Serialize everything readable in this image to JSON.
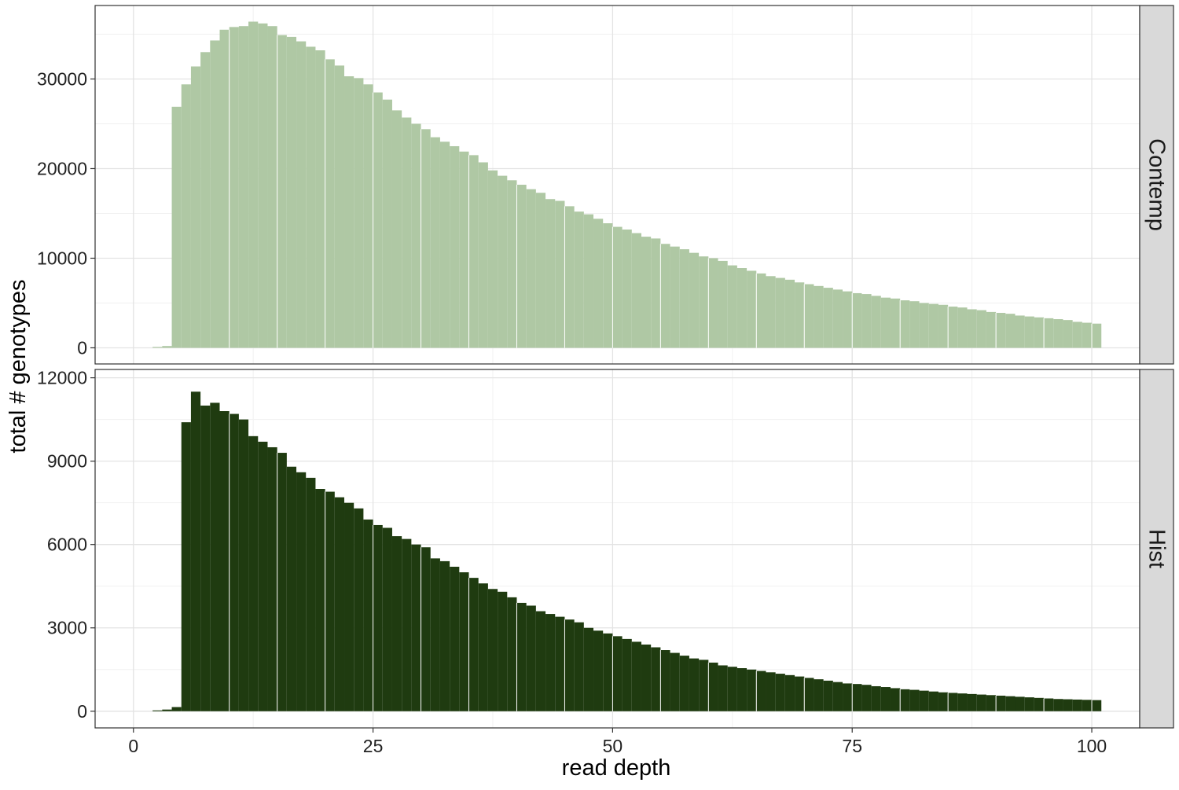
{
  "chart_data": {
    "type": "bar",
    "subtype": "faceted-histogram",
    "xlabel": "read depth",
    "ylabel": "total # genotypes",
    "x_ticks": [
      0,
      25,
      50,
      75,
      100
    ],
    "xlim": [
      -4,
      105
    ],
    "bin_width": 1,
    "bin_start": 1,
    "grid": true,
    "legend": "none",
    "panels": [
      {
        "name": "Contemp",
        "color": "#afc8a4",
        "ylim": [
          -1800,
          38200
        ],
        "y_ticks": [
          0,
          10000,
          20000,
          30000
        ],
        "values": [
          0,
          100,
          200,
          26900,
          29400,
          31400,
          33000,
          34300,
          35500,
          35800,
          35900,
          36400,
          36200,
          35900,
          34900,
          34700,
          34200,
          33600,
          33200,
          32200,
          31500,
          30300,
          30100,
          29400,
          28500,
          27700,
          26500,
          25700,
          25000,
          24400,
          23500,
          23000,
          22500,
          21900,
          21500,
          20700,
          19800,
          19200,
          18700,
          18200,
          17700,
          17300,
          16600,
          16400,
          15800,
          15200,
          14900,
          14400,
          13900,
          13500,
          13200,
          12800,
          12400,
          12200,
          11600,
          11300,
          11000,
          10600,
          10200,
          10000,
          9700,
          9200,
          8900,
          8600,
          8300,
          8000,
          7800,
          7600,
          7300,
          7100,
          6900,
          6700,
          6500,
          6300,
          6100,
          6000,
          5800,
          5600,
          5500,
          5300,
          5200,
          5000,
          4900,
          4800,
          4600,
          4500,
          4300,
          4200,
          4000,
          3900,
          3800,
          3600,
          3500,
          3400,
          3300,
          3200,
          3100,
          2900,
          2800,
          2700
        ]
      },
      {
        "name": "Hist",
        "color": "#1f3b10",
        "ylim": [
          -600,
          12300
        ],
        "y_ticks": [
          0,
          3000,
          6000,
          9000,
          12000
        ],
        "values": [
          0,
          30,
          60,
          150,
          10400,
          11500,
          11000,
          11100,
          10800,
          10700,
          10500,
          9900,
          9700,
          9500,
          9300,
          8800,
          8600,
          8400,
          8000,
          7900,
          7700,
          7500,
          7300,
          6900,
          6700,
          6600,
          6300,
          6200,
          6000,
          5900,
          5500,
          5400,
          5200,
          5000,
          4800,
          4600,
          4400,
          4300,
          4100,
          3900,
          3800,
          3600,
          3500,
          3400,
          3300,
          3200,
          3000,
          2900,
          2800,
          2700,
          2600,
          2500,
          2400,
          2300,
          2200,
          2100,
          2000,
          1900,
          1850,
          1750,
          1650,
          1600,
          1550,
          1500,
          1450,
          1400,
          1350,
          1300,
          1250,
          1200,
          1150,
          1100,
          1050,
          1000,
          980,
          950,
          900,
          870,
          830,
          790,
          770,
          740,
          710,
          680,
          660,
          640,
          620,
          600,
          580,
          560,
          540,
          520,
          500,
          480,
          460,
          440,
          430,
          420,
          410,
          400
        ]
      }
    ]
  }
}
